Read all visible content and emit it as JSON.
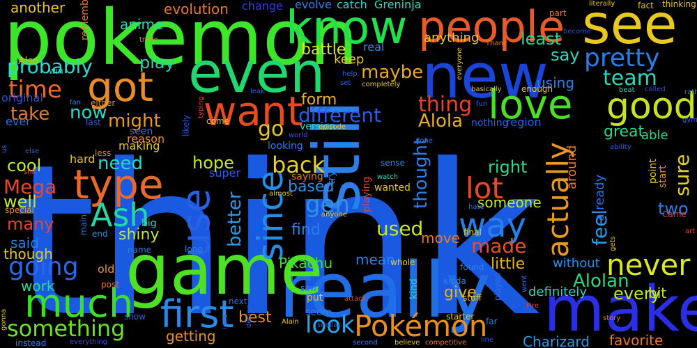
{
  "background": "#000000",
  "words": [
    {
      "text": "think",
      "color": "#1a5ae0"
    },
    {
      "text": "pokemon",
      "color": "#3ee62a"
    },
    {
      "text": "really",
      "color": "#1f6ee8"
    },
    {
      "text": "game",
      "color": "#4ee025"
    },
    {
      "text": "make",
      "color": "#2a2fe6"
    },
    {
      "text": "still",
      "color": "#2d7fe8"
    },
    {
      "text": "new",
      "color": "#1a45d8"
    },
    {
      "text": "even",
      "color": "#20d86e"
    },
    {
      "text": "see",
      "color": "#e8c821"
    },
    {
      "text": "know",
      "color": "#22e04a"
    },
    {
      "text": "people",
      "color": "#e85a28"
    },
    {
      "text": "got",
      "color": "#e88c2a"
    },
    {
      "text": "good",
      "color": "#c8e21f"
    },
    {
      "text": "want",
      "color": "#e84b1f"
    },
    {
      "text": "type",
      "color": "#e86a2a"
    },
    {
      "text": "love",
      "color": "#4ae02a"
    },
    {
      "text": "first",
      "color": "#2a8ae8"
    },
    {
      "text": "much",
      "color": "#3be022"
    },
    {
      "text": "use",
      "color": "#2860e6"
    },
    {
      "text": "since",
      "color": "#2390e8"
    },
    {
      "text": "way",
      "color": "#2580ea"
    },
    {
      "text": "Pokémon",
      "color": "#e8901f"
    },
    {
      "text": "Ash",
      "color": "#22d8a8"
    },
    {
      "text": "never",
      "color": "#d8e822"
    },
    {
      "text": "actually",
      "color": "#e89a1f"
    },
    {
      "text": "lot",
      "color": "#e8472a"
    },
    {
      "text": "pretty",
      "color": "#2a7ee8"
    },
    {
      "text": "going",
      "color": "#2a68e8"
    },
    {
      "text": "something",
      "color": "#6ee028"
    },
    {
      "text": "time",
      "color": "#e86a2a"
    },
    {
      "text": "team",
      "color": "#28d8b8"
    },
    {
      "text": "look",
      "color": "#2aa8e8"
    },
    {
      "text": "probably",
      "color": "#2ad8d0"
    },
    {
      "text": "thing",
      "color": "#e8432a"
    },
    {
      "text": "different",
      "color": "#2a5ae8"
    },
    {
      "text": "back",
      "color": "#e8d22a"
    },
    {
      "text": "gen",
      "color": "#3090e8"
    },
    {
      "text": "go",
      "color": "#e8c81f"
    },
    {
      "text": "made",
      "color": "#e8501f"
    },
    {
      "text": "Alolan",
      "color": "#28d880"
    },
    {
      "text": "feel",
      "color": "#2a9ae8"
    },
    {
      "text": "better",
      "color": "#2a9ae8"
    },
    {
      "text": "sure",
      "color": "#e8d21f"
    },
    {
      "text": "used",
      "color": "#c8e822"
    },
    {
      "text": "thought",
      "color": "#2a80e8"
    },
    {
      "text": "Mega",
      "color": "#e8472a"
    },
    {
      "text": "might",
      "color": "#e89a1f"
    },
    {
      "text": "need",
      "color": "#2ad8c8"
    },
    {
      "text": "hope",
      "color": "#c8e822"
    },
    {
      "text": "maybe",
      "color": "#e8a81f"
    },
    {
      "text": "play",
      "color": "#22d8b0"
    },
    {
      "text": "least",
      "color": "#28d888"
    },
    {
      "text": "say",
      "color": "#2ad8c0"
    },
    {
      "text": "right",
      "color": "#28d890"
    },
    {
      "text": "Alola",
      "color": "#e8b01f"
    },
    {
      "text": "take",
      "color": "#e8782a"
    },
    {
      "text": "now",
      "color": "#2ad8c8"
    },
    {
      "text": "cool",
      "color": "#c0e822"
    },
    {
      "text": "well",
      "color": "#c8e822"
    },
    {
      "text": "many",
      "color": "#e8432a"
    },
    {
      "text": "little",
      "color": "#e8b01f"
    },
    {
      "text": "every",
      "color": "#c0e822"
    },
    {
      "text": "two",
      "color": "#2a7ee8"
    },
    {
      "text": "shiny",
      "color": "#c8e822"
    },
    {
      "text": "form",
      "color": "#e8b01f"
    },
    {
      "text": "give",
      "color": "#e8b01f"
    },
    {
      "text": "battle",
      "color": "#d8e822"
    },
    {
      "text": "great",
      "color": "#28d888"
    },
    {
      "text": "Pikachu",
      "color": "#40e02a"
    },
    {
      "text": "based",
      "color": "#2a90e8"
    },
    {
      "text": "find",
      "color": "#2a80e8"
    },
    {
      "text": "Charizard",
      "color": "#2a9ae8"
    },
    {
      "text": "another",
      "color": "#e8c81f"
    },
    {
      "text": "evolution",
      "color": "#e8782a"
    },
    {
      "text": "anime",
      "color": "#2ad8b0"
    },
    {
      "text": "said",
      "color": "#2a80e8"
    },
    {
      "text": "work",
      "color": "#28d890"
    },
    {
      "text": "best",
      "color": "#e8902a"
    },
    {
      "text": "getting",
      "color": "#e8902a"
    },
    {
      "text": "move",
      "color": "#e8782a"
    },
    {
      "text": "mean",
      "color": "#2a80e8"
    },
    {
      "text": "favorite",
      "color": "#e8782a"
    },
    {
      "text": "bit",
      "color": "#c8e822"
    },
    {
      "text": "though",
      "color": "#e8c81f"
    },
    {
      "text": "someone",
      "color": "#c8e822"
    },
    {
      "text": "able",
      "color": "#28d888"
    },
    {
      "text": "around",
      "color": "#e8782a"
    },
    {
      "text": "already",
      "color": "#2a70e8"
    },
    {
      "text": "definitely",
      "color": "#28d8c0"
    },
    {
      "text": "without",
      "color": "#2a90e8"
    },
    {
      "text": "using",
      "color": "#2a80e8"
    },
    {
      "text": "anything",
      "color": "#e8c81f"
    },
    {
      "text": "keep",
      "color": "#e8c81f"
    },
    {
      "text": "real",
      "color": "#2a90e8"
    },
    {
      "text": "catch",
      "color": "#2ad8d0"
    },
    {
      "text": "evolve",
      "color": "#2a80e8"
    },
    {
      "text": "change",
      "color": "#2a40d8"
    },
    {
      "text": "Greninja",
      "color": "#28d8c0"
    },
    {
      "text": "remember",
      "color": "#e8782a"
    },
    {
      "text": "Also",
      "color": "#e8b01f"
    },
    {
      "text": "original",
      "color": "#2a50e0"
    },
    {
      "text": "ever",
      "color": "#2a70e8"
    },
    {
      "text": "seen",
      "color": "#2a70e8"
    },
    {
      "text": "reason",
      "color": "#e8902a"
    },
    {
      "text": "making",
      "color": "#e8c81f"
    },
    {
      "text": "looking",
      "color": "#2a80e8"
    },
    {
      "text": "version",
      "color": "#2ad8c8"
    },
    {
      "text": "nothing",
      "color": "#2a60e0"
    },
    {
      "text": "region",
      "color": "#2a60e0"
    },
    {
      "text": "hard",
      "color": "#e8c81f"
    },
    {
      "text": "super",
      "color": "#2a5ae8"
    },
    {
      "text": "saying",
      "color": "#e8782a"
    },
    {
      "text": "wanted",
      "color": "#e8c81f"
    },
    {
      "text": "playing",
      "color": "#e8432a"
    },
    {
      "text": "thinking",
      "color": "#e8c81f"
    },
    {
      "text": "literally",
      "color": "#e8c81f"
    },
    {
      "text": "fact",
      "color": "#e8c81f"
    },
    {
      "text": "part",
      "color": "#e8782a"
    },
    {
      "text": "become",
      "color": "#2a50e0"
    },
    {
      "text": "trade",
      "color": "#e8902a"
    },
    {
      "text": "win",
      "color": "#28d8c0"
    },
    {
      "text": "fan",
      "color": "#2a80e8"
    },
    {
      "text": "either",
      "color": "#e8902a"
    },
    {
      "text": "last",
      "color": "#2a60e0"
    },
    {
      "text": "come",
      "color": "#e8c81f"
    },
    {
      "text": "episode",
      "color": "#e8c81f"
    },
    {
      "text": "likely",
      "color": "#2a50e0"
    },
    {
      "text": "typing",
      "color": "#e8432a"
    },
    {
      "text": "else",
      "color": "#2a60e0"
    },
    {
      "text": "us",
      "color": "#2a70e8"
    },
    {
      "text": "shit",
      "color": "#e8432a"
    },
    {
      "text": "special",
      "color": "#e8902a"
    },
    {
      "text": "less",
      "color": "#e8782a"
    },
    {
      "text": "world",
      "color": "#2a60e0"
    },
    {
      "text": "almost",
      "color": "#e8c81f"
    },
    {
      "text": "sense",
      "color": "#2a80e8"
    },
    {
      "text": "done",
      "color": "#2a70e8"
    },
    {
      "text": "ability",
      "color": "#2a60e0"
    },
    {
      "text": "start",
      "color": "#e8902a"
    },
    {
      "text": "point",
      "color": "#e8c81f"
    },
    {
      "text": "Came",
      "color": "#e8432a"
    },
    {
      "text": "rather",
      "color": "#2a70e8"
    },
    {
      "text": "art",
      "color": "#e8432a"
    },
    {
      "text": "gets",
      "color": "#e8c81f"
    },
    {
      "text": "hate",
      "color": "#2a70e8"
    },
    {
      "text": "final",
      "color": "#e8c81f"
    },
    {
      "text": "big",
      "color": "#2ad8c8"
    },
    {
      "text": "main",
      "color": "#2a70e8"
    },
    {
      "text": "end",
      "color": "#2a90e8"
    },
    {
      "text": "name",
      "color": "#2a80e8"
    },
    {
      "text": "long",
      "color": "#2a80e8"
    },
    {
      "text": "old",
      "color": "#e8902a"
    },
    {
      "text": "post",
      "color": "#e8782a"
    },
    {
      "text": "gonna",
      "color": "#e8c81f"
    },
    {
      "text": "instead",
      "color": "#2a80e8"
    },
    {
      "text": "everything",
      "color": "#2a50e0"
    },
    {
      "text": "show",
      "color": "#2a60e0"
    },
    {
      "text": "next",
      "color": "#2a70e8"
    },
    {
      "text": "idea",
      "color": "#2a60e0"
    },
    {
      "text": "Alain",
      "color": "#e8c81f"
    },
    {
      "text": "similar",
      "color": "#2a60e0"
    },
    {
      "text": "second",
      "color": "#2a80e8"
    },
    {
      "text": "believe",
      "color": "#e8c81f"
    },
    {
      "text": "competitive",
      "color": "#e8782a"
    },
    {
      "text": "line",
      "color": "#2a50e0"
    },
    {
      "text": "put",
      "color": "#e8c81f"
    },
    {
      "text": "seem",
      "color": "#2a80e8"
    },
    {
      "text": "saw",
      "color": "#2a80e8"
    },
    {
      "text": "attack",
      "color": "#e8432a"
    },
    {
      "text": "kind",
      "color": "#28d8c0"
    },
    {
      "text": "kinda",
      "color": "#2a80e8"
    },
    {
      "text": "found",
      "color": "#2a80e8"
    },
    {
      "text": "stuff",
      "color": "#e8c81f"
    },
    {
      "text": "starter",
      "color": "#e8c81f"
    },
    {
      "text": "far",
      "color": "#2a80e8"
    },
    {
      "text": "played",
      "color": "#2a70e8"
    },
    {
      "text": "went",
      "color": "#2a70e8"
    },
    {
      "text": "Fire",
      "color": "#e8432a"
    },
    {
      "text": "whole",
      "color": "#e8c81f"
    },
    {
      "text": "anyone",
      "color": "#e8c81f"
    },
    {
      "text": "design",
      "color": "#2a60e0"
    },
    {
      "text": "set",
      "color": "#2a60e0"
    },
    {
      "text": "watch",
      "color": "#28d8c0"
    },
    {
      "text": "try",
      "color": "#2a80e8"
    },
    {
      "text": "enough",
      "color": "#e8c81f"
    },
    {
      "text": "beat",
      "color": "#28d8c0"
    },
    {
      "text": "called",
      "color": "#2a50e0"
    },
    {
      "text": "basically",
      "color": "#e8c81f"
    },
    {
      "text": "fun",
      "color": "#2a60e0"
    },
    {
      "text": "everyone",
      "color": "#e8c81f"
    },
    {
      "text": "Thank",
      "color": "#e8782a"
    },
    {
      "text": "leak",
      "color": "#2a60e0"
    },
    {
      "text": "completely",
      "color": "#e8c81f"
    },
    {
      "text": "help",
      "color": "#2a60e0"
    },
    {
      "text": "gym",
      "color": "#2a60e0"
    },
    {
      "text": "story",
      "color": "#e8782a"
    }
  ]
}
